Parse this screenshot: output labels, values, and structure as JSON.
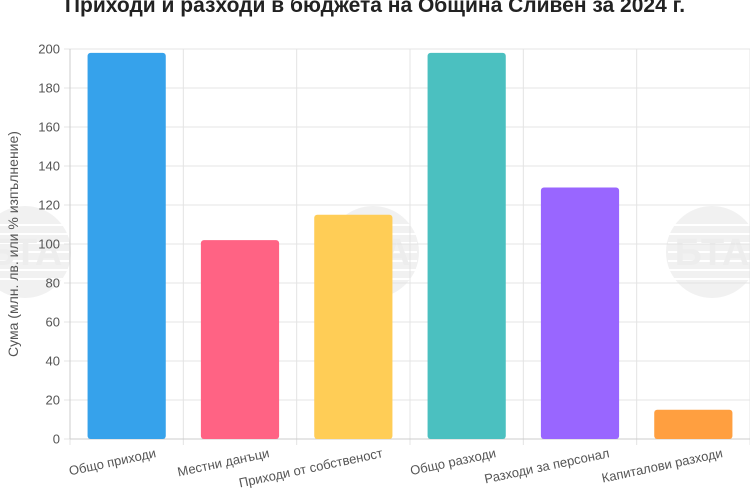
{
  "chart_data": {
    "type": "bar",
    "title": "Приходи и разходи в бюджета на Община Сливен за 2024 г.",
    "xlabel": "",
    "ylabel": "Сума (млн. лв. или % изпълнение)",
    "categories": [
      "Общо приходи",
      "Местни данъци",
      "Приходи от собственост",
      "Общо разходи",
      "Разходи за персонал",
      "Капиталови разходи"
    ],
    "values": [
      198,
      102,
      115,
      198,
      129,
      15
    ],
    "colors": [
      "#36a2eb",
      "#ff6384",
      "#ffcd56",
      "#4bc0c0",
      "#9966ff",
      "#ff9f40"
    ],
    "ylim": [
      0,
      200
    ],
    "yticks": [
      "0",
      "20",
      "40",
      "60",
      "80",
      "100",
      "120",
      "140",
      "160",
      "180",
      "200"
    ],
    "grid": true,
    "legend": "none"
  },
  "watermark": {
    "text": "БТА"
  }
}
